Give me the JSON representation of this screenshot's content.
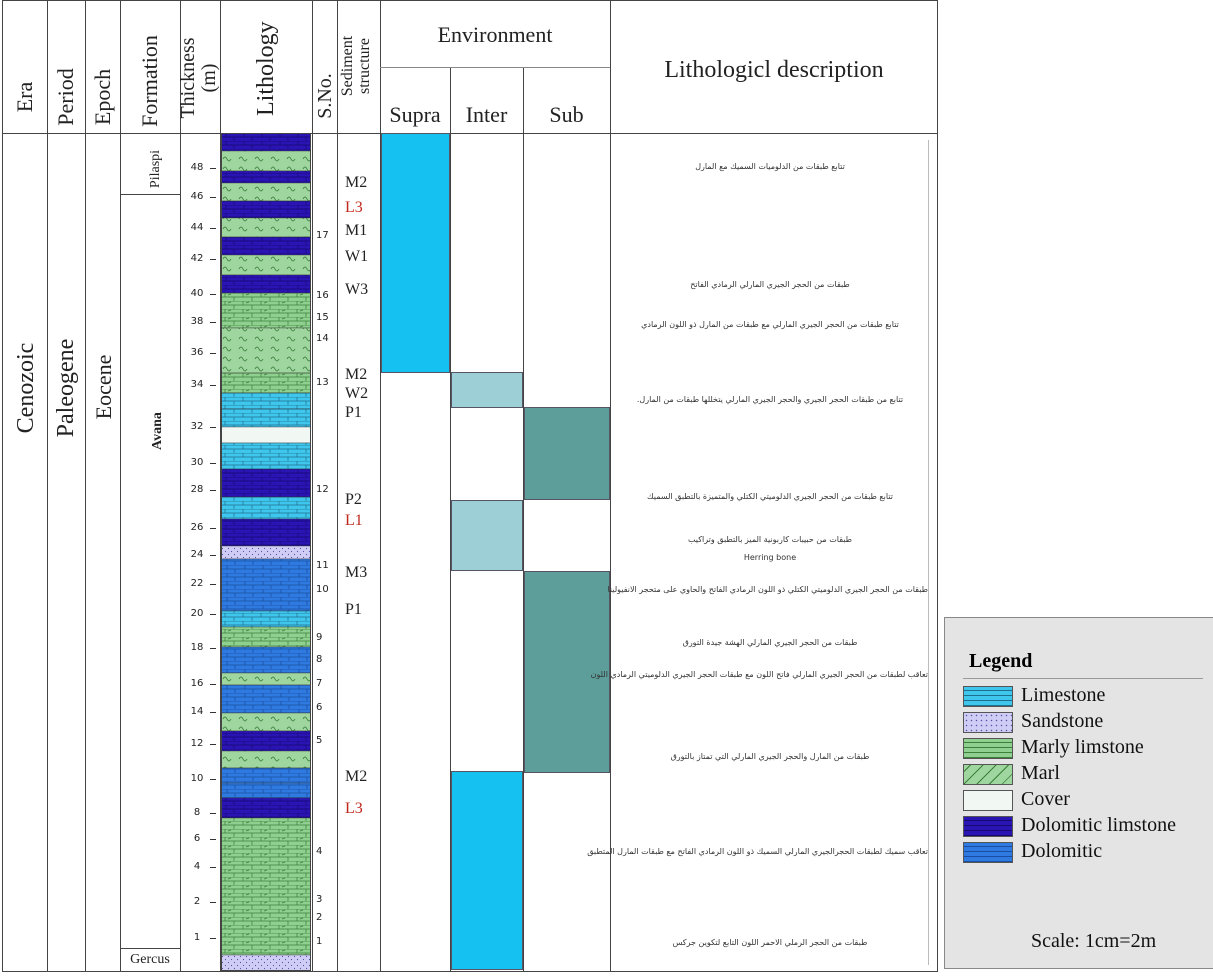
{
  "headers": {
    "era": "Era",
    "period": "Period",
    "epoch": "Epoch",
    "formation": "Formation",
    "thickness": "Thickness (m)",
    "lithology": "Lithology",
    "sno": "S.No.",
    "sediment": "Sediment structure",
    "environment": "Environment",
    "supra": "Supra",
    "inter": "Inter",
    "sub": "Sub",
    "description": "Lithologicl description"
  },
  "era_value": "Cenozoic",
  "period_value": "Paleogene",
  "epoch_value": "Eocene",
  "formations": [
    "Pilaspi",
    "Avana",
    "Gercus"
  ],
  "thickness_ticks": [
    48,
    46,
    44,
    42,
    40,
    38,
    36,
    34,
    32,
    30,
    28,
    26,
    24,
    22,
    20,
    18,
    16,
    14,
    12,
    10,
    8,
    6,
    4,
    2,
    1
  ],
  "sample_numbers": [
    "17",
    "16",
    "15",
    "14",
    "13",
    "12",
    "11",
    "10",
    "9",
    "8",
    "7",
    "6",
    "5",
    "4",
    "3",
    "2",
    "1"
  ],
  "sediment_codes": [
    {
      "code": "M2",
      "color": "#222222"
    },
    {
      "code": "L3",
      "color": "#c0281e"
    },
    {
      "code": "M1",
      "color": "#222222"
    },
    {
      "code": "W1",
      "color": "#222222"
    },
    {
      "code": "W3",
      "color": "#222222"
    },
    {
      "code": "M2",
      "color": "#222222"
    },
    {
      "code": "W2",
      "color": "#222222"
    },
    {
      "code": "P1",
      "color": "#222222"
    },
    {
      "code": "P2",
      "color": "#222222"
    },
    {
      "code": "L1",
      "color": "#c0281e"
    },
    {
      "code": "M3",
      "color": "#222222"
    },
    {
      "code": "P1",
      "color": "#222222"
    },
    {
      "code": "M2",
      "color": "#222222"
    },
    {
      "code": "L3",
      "color": "#c0281e"
    }
  ],
  "environment_colors": {
    "supra": "#14c1f0",
    "inter": "#9cd0d6",
    "sub": "#5e9e9a"
  },
  "descriptions": [
    "تتابع طبقات من الدلوميات السميك مع المارل",
    "طبقات من الحجر الجيري المارلي الرمادي الفاتح",
    "تتابع طبقات من الحجر الجيري المارلي مع طبقات من المارل ذو اللون الرمادي",
    "تتابع من طبقات الحجر الجيري والحجر الجيري المارلي يتخللها طبقات من المارل.",
    "تتابع طبقات من الحجر الجيري الدلوميتي الكتلي والمتميزة بالتطبق السميك",
    "طبقات من حبيبات كاربونية الميز بالتطبق وتراكيب",
    "Herring bone",
    "طبقات من الحجر الجيري الدلوميتي الكتلي ذو اللون الرمادي الفاتح والحاوي على متحجر الانفيولينا",
    "طبقات من الحجر الجيري المارلي الهشة جيدة التورق",
    "تعاقب لطبقات من الحجر الجيري المارلي فاتح اللون مع طبقات الحجر الجيري الدلوميتي الرمادي اللون",
    "طبقات من المارل والحجر الجيري المارلي التي تمتاز بالتورق",
    "تعاقب سميك لطبقات الحجرالجيري المارلي السميك ذو اللون الرمادي الفاتح مع طبقات المارل المتطبق",
    "طبقات من الحجر الرملي الاحمر اللون التابع لتكوين جركس"
  ],
  "legend": {
    "title": "Legend",
    "items": [
      {
        "label": "Limestone",
        "type": "limestone",
        "color": "#3fc6ec"
      },
      {
        "label": "Sandstone",
        "type": "sandstone",
        "color": "#cfcdf6"
      },
      {
        "label": "Marly  limstone",
        "type": "marly",
        "color": "#8fcf8f"
      },
      {
        "label": "Marl",
        "type": "marl",
        "color": "#9fd59f"
      },
      {
        "label": "Cover",
        "type": "cover",
        "color": "#f1f8f4"
      },
      {
        "label": "Dolomitic limstone",
        "type": "dololime",
        "color": "#2a14b4"
      },
      {
        "label": "Dolomitic",
        "type": "dolomitic",
        "color": "#2f7ae0"
      }
    ],
    "scale": "Scale: 1cm=2m"
  }
}
